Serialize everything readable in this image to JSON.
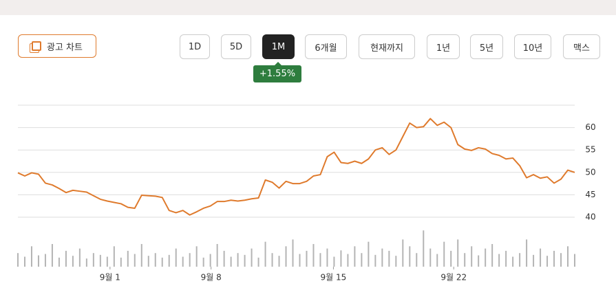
{
  "toolbar": {
    "ad_chart": "광고 차트",
    "ranges": [
      "1D",
      "5D",
      "1M",
      "6개월",
      "현재까지",
      "1년",
      "5년",
      "10년",
      "맥스"
    ],
    "selected": 2,
    "change": "+1.55%"
  },
  "chart_data": {
    "type": "line",
    "color": "#df7a2c",
    "volume_color": "#b4b4b4",
    "values": [
      49.9,
      49.2,
      49.9,
      49.6,
      47.6,
      47.2,
      46.4,
      45.5,
      46.0,
      45.8,
      45.6,
      44.8,
      44.0,
      43.6,
      43.3,
      43.0,
      42.2,
      42.0,
      44.9,
      44.8,
      44.7,
      44.4,
      41.5,
      41.0,
      41.5,
      40.5,
      41.2,
      42.0,
      42.5,
      43.5,
      43.5,
      43.8,
      43.6,
      43.8,
      44.1,
      44.3,
      48.3,
      47.8,
      46.5,
      48.0,
      47.5,
      47.5,
      48.0,
      49.2,
      49.5,
      53.5,
      54.5,
      52.2,
      52.0,
      52.5,
      52.0,
      53.0,
      55.0,
      55.5,
      54.0,
      55.0,
      58.0,
      61.0,
      60.0,
      60.2,
      62.0,
      60.5,
      61.2,
      60.0,
      56.2,
      55.2,
      54.9,
      55.5,
      55.2,
      54.2,
      53.8,
      53.0,
      53.2,
      51.5,
      48.8,
      49.5,
      48.7,
      49.0,
      47.6,
      48.5,
      50.5,
      50.0
    ],
    "volume": [
      30,
      22,
      45,
      25,
      28,
      50,
      20,
      35,
      24,
      40,
      18,
      30,
      26,
      22,
      45,
      20,
      35,
      28,
      50,
      24,
      30,
      20,
      26,
      40,
      22,
      30,
      45,
      20,
      28,
      50,
      35,
      22,
      30,
      26,
      40,
      20,
      55,
      30,
      24,
      45,
      60,
      28,
      35,
      50,
      30,
      40,
      22,
      36,
      28,
      45,
      30,
      55,
      26,
      40,
      35,
      24,
      60,
      45,
      30,
      80,
      40,
      28,
      55,
      35,
      60,
      30,
      45,
      25,
      40,
      50,
      28,
      35,
      22,
      30,
      60,
      26,
      40,
      24,
      35,
      30,
      45,
      28
    ],
    "volume_lim": [
      0,
      100
    ],
    "xlim": [
      0,
      81
    ],
    "xticks": [
      {
        "value": 13.4,
        "label": "9월 1"
      },
      {
        "value": 28.1,
        "label": "9월 8"
      },
      {
        "value": 45.9,
        "label": "9월 15"
      },
      {
        "value": 63.4,
        "label": "9월 22"
      }
    ],
    "ylim": [
      40,
      65
    ],
    "yticks": [
      40,
      45,
      50,
      55,
      60
    ],
    "grid": true
  }
}
